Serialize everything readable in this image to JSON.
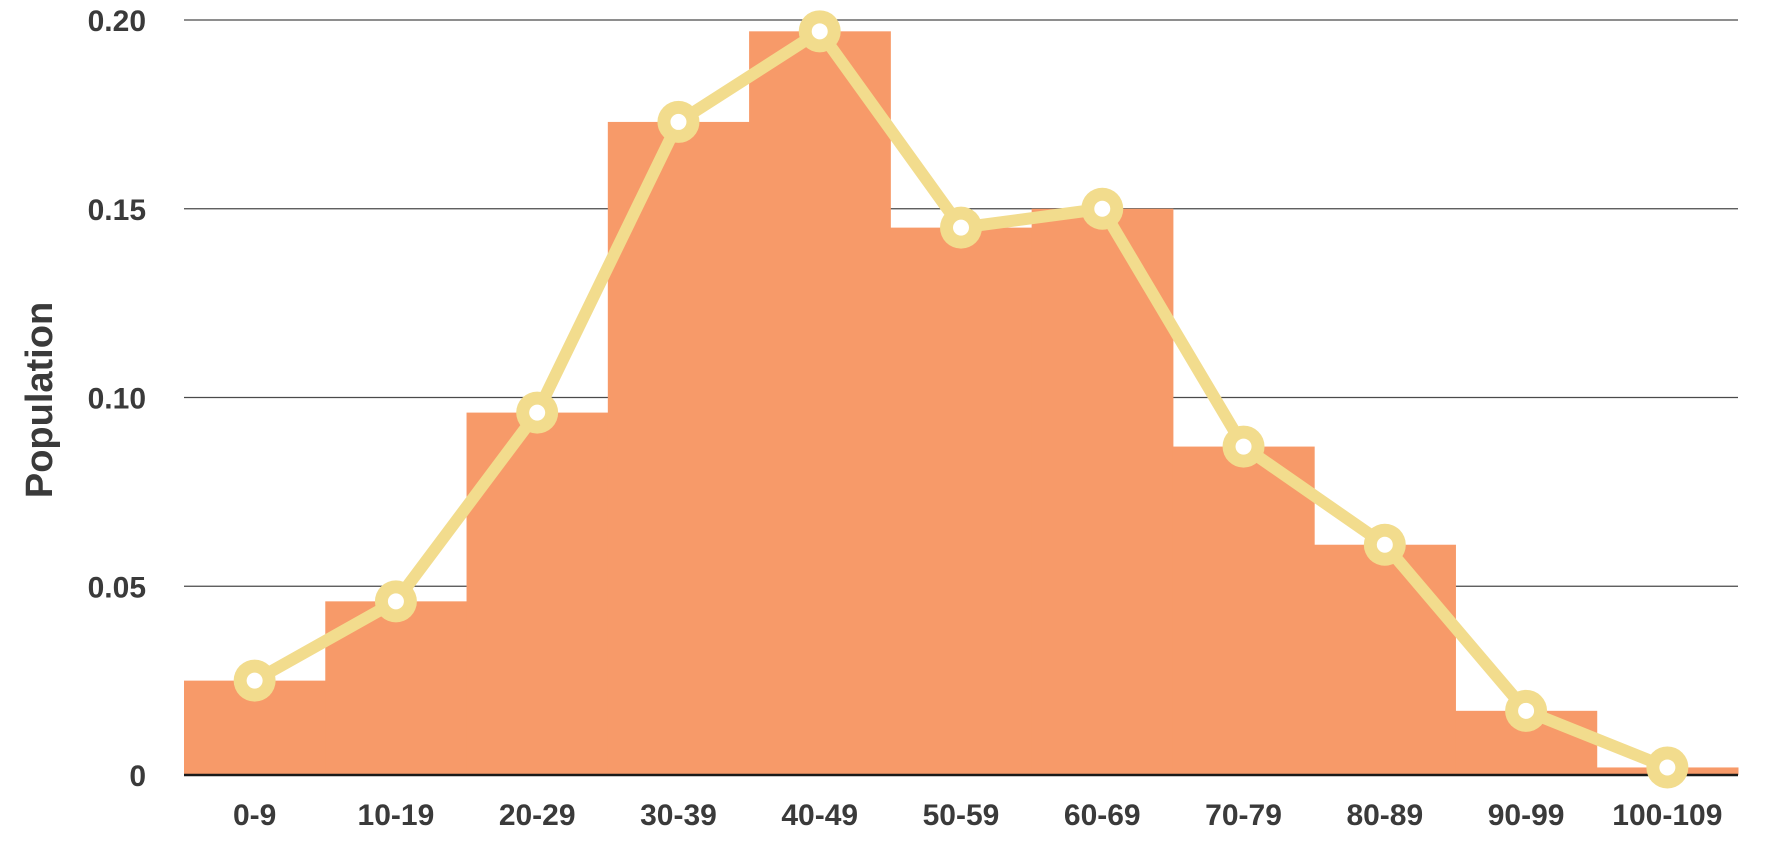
{
  "chart_data": {
    "type": "bar",
    "title": "",
    "xlabel": "",
    "ylabel": "Population",
    "categories": [
      "0-9",
      "10-19",
      "20-29",
      "30-39",
      "40-49",
      "50-59",
      "60-69",
      "70-79",
      "80-89",
      "90-99",
      "100-109"
    ],
    "series": [
      {
        "kind": "histogram",
        "values": [
          0.025,
          0.046,
          0.096,
          0.173,
          0.197,
          0.145,
          0.15,
          0.087,
          0.061,
          0.017,
          0.002
        ]
      },
      {
        "kind": "line",
        "values": [
          0.025,
          0.046,
          0.096,
          0.173,
          0.197,
          0.145,
          0.15,
          0.087,
          0.061,
          0.017,
          0.002
        ]
      }
    ],
    "ylim": [
      0,
      0.2
    ],
    "yticks": [
      0,
      0.05,
      0.1,
      0.15,
      0.2
    ],
    "ytick_labels": [
      "0",
      "0.05",
      "0.10",
      "0.15",
      "0.20"
    ],
    "grid": true,
    "colors": {
      "bars": "#f79a69",
      "line": "#f2dc8d",
      "marker_fill": "#ffffff",
      "grid": "#4a4a4a",
      "text": "#3a3a3a"
    }
  }
}
